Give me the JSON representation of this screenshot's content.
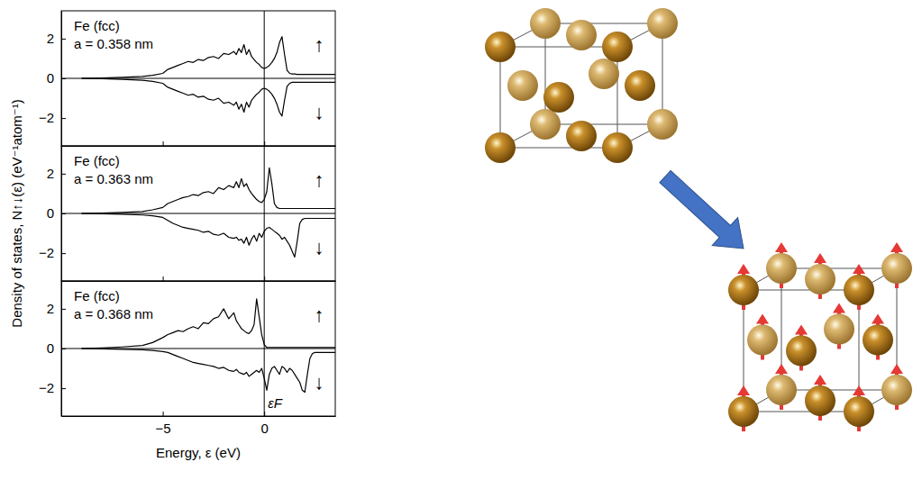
{
  "chart_data": [
    {
      "type": "line",
      "annotations": [
        "Fe (fcc)",
        "a = 0.358 nm"
      ],
      "x": [
        -9,
        -8,
        -7,
        -6,
        -5.5,
        -5,
        -4.75,
        -4.5,
        -4.25,
        -4,
        -3.75,
        -3.5,
        -3.25,
        -3,
        -2.75,
        -2.5,
        -2.25,
        -2,
        -1.75,
        -1.5,
        -1.375,
        -1.25,
        -1.125,
        -1,
        -0.875,
        -0.75,
        -0.625,
        -0.5,
        -0.375,
        -0.25,
        -0.125,
        0,
        0.125,
        0.25,
        0.375,
        0.5,
        0.625,
        0.75,
        0.875,
        1,
        1.125,
        1.25,
        1.375,
        1.5,
        1.625,
        1.75,
        1.875,
        2,
        2.125,
        2.25,
        2.375,
        2.5,
        3,
        3.5
      ],
      "series": [
        {
          "name": "↑",
          "color": "#000000",
          "values": [
            0,
            0.02,
            0.05,
            0.1,
            0.15,
            0.25,
            0.45,
            0.55,
            0.65,
            0.75,
            0.85,
            0.8,
            0.95,
            0.9,
            1.05,
            1.1,
            1.0,
            1.25,
            1.2,
            1.35,
            1.2,
            1.5,
            1.3,
            1.7,
            1.2,
            1.45,
            1.1,
            0.95,
            0.8,
            0.7,
            0.55,
            0.5,
            0.55,
            0.65,
            0.8,
            1.0,
            1.3,
            1.8,
            2.1,
            1.2,
            0.4,
            0.25,
            0.22,
            0.22,
            0.2,
            0.2,
            0.2,
            0.2,
            0.2,
            0.2,
            0.2,
            0.2,
            0.2,
            0.2
          ]
        },
        {
          "name": "↓",
          "color": "#000000",
          "values": [
            0,
            -0.02,
            -0.05,
            -0.1,
            -0.15,
            -0.25,
            -0.45,
            -0.55,
            -0.65,
            -0.75,
            -0.85,
            -0.8,
            -0.95,
            -0.9,
            -1.05,
            -1.1,
            -1.0,
            -1.25,
            -1.2,
            -1.35,
            -1.2,
            -1.55,
            -1.3,
            -1.7,
            -1.2,
            -1.45,
            -1.1,
            -0.95,
            -0.8,
            -0.7,
            -0.55,
            -0.5,
            -0.55,
            -0.65,
            -0.8,
            -1.0,
            -1.3,
            -1.7,
            -1.9,
            -1.1,
            -0.4,
            -0.25,
            -0.2,
            -0.2,
            -0.2,
            -0.2,
            -0.2,
            -0.2,
            -0.2,
            -0.2,
            -0.2,
            -0.2,
            -0.2,
            -0.2
          ]
        }
      ],
      "xlim": [
        -10,
        3.5
      ],
      "xticks": [
        {
          "value": -5,
          "label": "−5"
        },
        0
      ],
      "ylim": [
        -3.4,
        3.4
      ],
      "yticks": [
        {
          "value": -2,
          "label": "−2"
        },
        0,
        2
      ],
      "vlines": [
        0
      ],
      "hlines": [
        0
      ],
      "tick_labels": "y"
    },
    {
      "type": "line",
      "annotations": [
        "Fe (fcc)",
        "a = 0.363 nm"
      ],
      "y_label": "Density of states, N↑↓(ε)  (eV⁻¹atom⁻¹)",
      "x": [
        -9,
        -8,
        -7,
        -6,
        -5.5,
        -5,
        -4.75,
        -4.5,
        -4.25,
        -4,
        -3.75,
        -3.5,
        -3.25,
        -3,
        -2.75,
        -2.5,
        -2.25,
        -2,
        -1.75,
        -1.5,
        -1.375,
        -1.25,
        -1.125,
        -1,
        -0.875,
        -0.75,
        -0.625,
        -0.5,
        -0.375,
        -0.25,
        -0.125,
        0,
        0.125,
        0.25,
        0.375,
        0.5,
        0.625,
        0.75,
        0.875,
        1,
        1.125,
        1.25,
        1.375,
        1.5,
        1.625,
        1.75,
        1.875,
        2,
        2.125,
        2.25,
        2.375,
        2.5,
        3,
        3.5
      ],
      "series": [
        {
          "name": "↑",
          "color": "#000000",
          "values": [
            0,
            0.02,
            0.05,
            0.1,
            0.18,
            0.3,
            0.5,
            0.6,
            0.7,
            0.8,
            0.85,
            0.95,
            0.9,
            1.05,
            1.1,
            1.0,
            1.3,
            1.2,
            1.4,
            1.3,
            1.6,
            1.3,
            1.75,
            1.35,
            1.5,
            1.2,
            1.0,
            0.85,
            0.7,
            0.6,
            0.55,
            0.7,
            1.1,
            2.3,
            1.5,
            0.5,
            0.3,
            0.25,
            0.25,
            0.25,
            0.25,
            0.25,
            0.25,
            0.25,
            0.25,
            0.25,
            0.25,
            0.25,
            0.25,
            0.25,
            0.25,
            0.25,
            0.25,
            0.25
          ]
        },
        {
          "name": "↓",
          "color": "#000000",
          "values": [
            0,
            -0.02,
            -0.04,
            -0.08,
            -0.12,
            -0.2,
            -0.35,
            -0.5,
            -0.6,
            -0.7,
            -0.75,
            -0.8,
            -0.85,
            -0.95,
            -0.9,
            -1.05,
            -1.1,
            -1.0,
            -1.2,
            -1.25,
            -1.2,
            -1.35,
            -1.3,
            -1.5,
            -1.2,
            -1.6,
            -1.3,
            -1.1,
            -1.4,
            -1.0,
            -1.2,
            -0.9,
            -0.75,
            -0.7,
            -0.8,
            -0.9,
            -1.0,
            -1.1,
            -1.3,
            -1.2,
            -1.4,
            -1.6,
            -1.9,
            -2.2,
            -1.4,
            -0.5,
            -0.3,
            -0.25,
            -0.25,
            -0.25,
            -0.25,
            -0.25,
            -0.25,
            -0.25
          ]
        }
      ],
      "xlim": [
        -10,
        3.5
      ],
      "xticks": [
        {
          "value": -5,
          "label": "−5"
        },
        0
      ],
      "ylim": [
        -3.4,
        3.4
      ],
      "yticks": [
        {
          "value": -2,
          "label": "−2"
        },
        0,
        2
      ],
      "vlines": [
        0
      ],
      "hlines": [
        0
      ],
      "tick_labels": "y"
    },
    {
      "type": "line",
      "annotations": [
        "Fe (fcc)",
        "a = 0.368 nm"
      ],
      "x_label": "Energy, ε (eV)",
      "x": [
        -9,
        -8,
        -7,
        -6,
        -5.5,
        -5,
        -4.75,
        -4.5,
        -4.25,
        -4,
        -3.75,
        -3.5,
        -3.25,
        -3,
        -2.75,
        -2.5,
        -2.25,
        -2,
        -1.75,
        -1.5,
        -1.375,
        -1.25,
        -1.125,
        -1,
        -0.875,
        -0.75,
        -0.625,
        -0.5,
        -0.375,
        -0.25,
        -0.125,
        0,
        0.125,
        0.25,
        0.375,
        0.5,
        0.625,
        0.75,
        0.875,
        1,
        1.125,
        1.25,
        1.375,
        1.5,
        1.625,
        1.75,
        1.875,
        2,
        2.125,
        2.25,
        2.375,
        2.5,
        3,
        3.5
      ],
      "series": [
        {
          "name": "↑",
          "color": "#000000",
          "values": [
            0,
            0.03,
            0.08,
            0.15,
            0.3,
            0.55,
            0.7,
            0.8,
            0.9,
            0.85,
            1.0,
            1.1,
            1.0,
            1.3,
            1.25,
            1.5,
            1.6,
            2.0,
            1.5,
            1.8,
            1.4,
            1.2,
            1.0,
            0.9,
            0.8,
            0.75,
            0.9,
            1.2,
            2.5,
            1.6,
            0.7,
            0.2,
            0.05,
            0.05,
            0.05,
            0.05,
            0.05,
            0.05,
            0.05,
            0.05,
            0.05,
            0.05,
            0.05,
            0.05,
            0.05,
            0.05,
            0.05,
            0.05,
            0.05,
            0.05,
            0.05,
            0.05,
            0.05,
            0.05
          ]
        },
        {
          "name": "↓",
          "color": "#000000",
          "values": [
            0,
            -0.02,
            -0.04,
            -0.06,
            -0.1,
            -0.15,
            -0.2,
            -0.3,
            -0.4,
            -0.5,
            -0.6,
            -0.7,
            -0.75,
            -0.8,
            -0.85,
            -0.9,
            -1.0,
            -0.95,
            -1.1,
            -1.15,
            -1.05,
            -1.2,
            -1.25,
            -1.3,
            -1.2,
            -1.4,
            -1.3,
            -1.2,
            -1.1,
            -1.2,
            -1.0,
            -1.5,
            -2.1,
            -1.3,
            -1.0,
            -0.9,
            -1.1,
            -1.3,
            -0.9,
            -1.0,
            -1.2,
            -1.0,
            -1.1,
            -1.3,
            -1.5,
            -1.7,
            -2.1,
            -2.2,
            -1.3,
            -0.5,
            -0.25,
            -0.2,
            -0.2,
            -0.2
          ]
        }
      ],
      "xlim": [
        -10,
        3.5
      ],
      "xticks": [
        {
          "value": -5,
          "label": "−5"
        },
        0
      ],
      "ylim": [
        -3.4,
        3.4
      ],
      "yticks": [
        {
          "value": -2,
          "label": "−2"
        },
        0,
        2
      ],
      "vlines": [
        0
      ],
      "vline_labels": [
        "εF"
      ],
      "hlines": [
        0
      ]
    }
  ]
}
